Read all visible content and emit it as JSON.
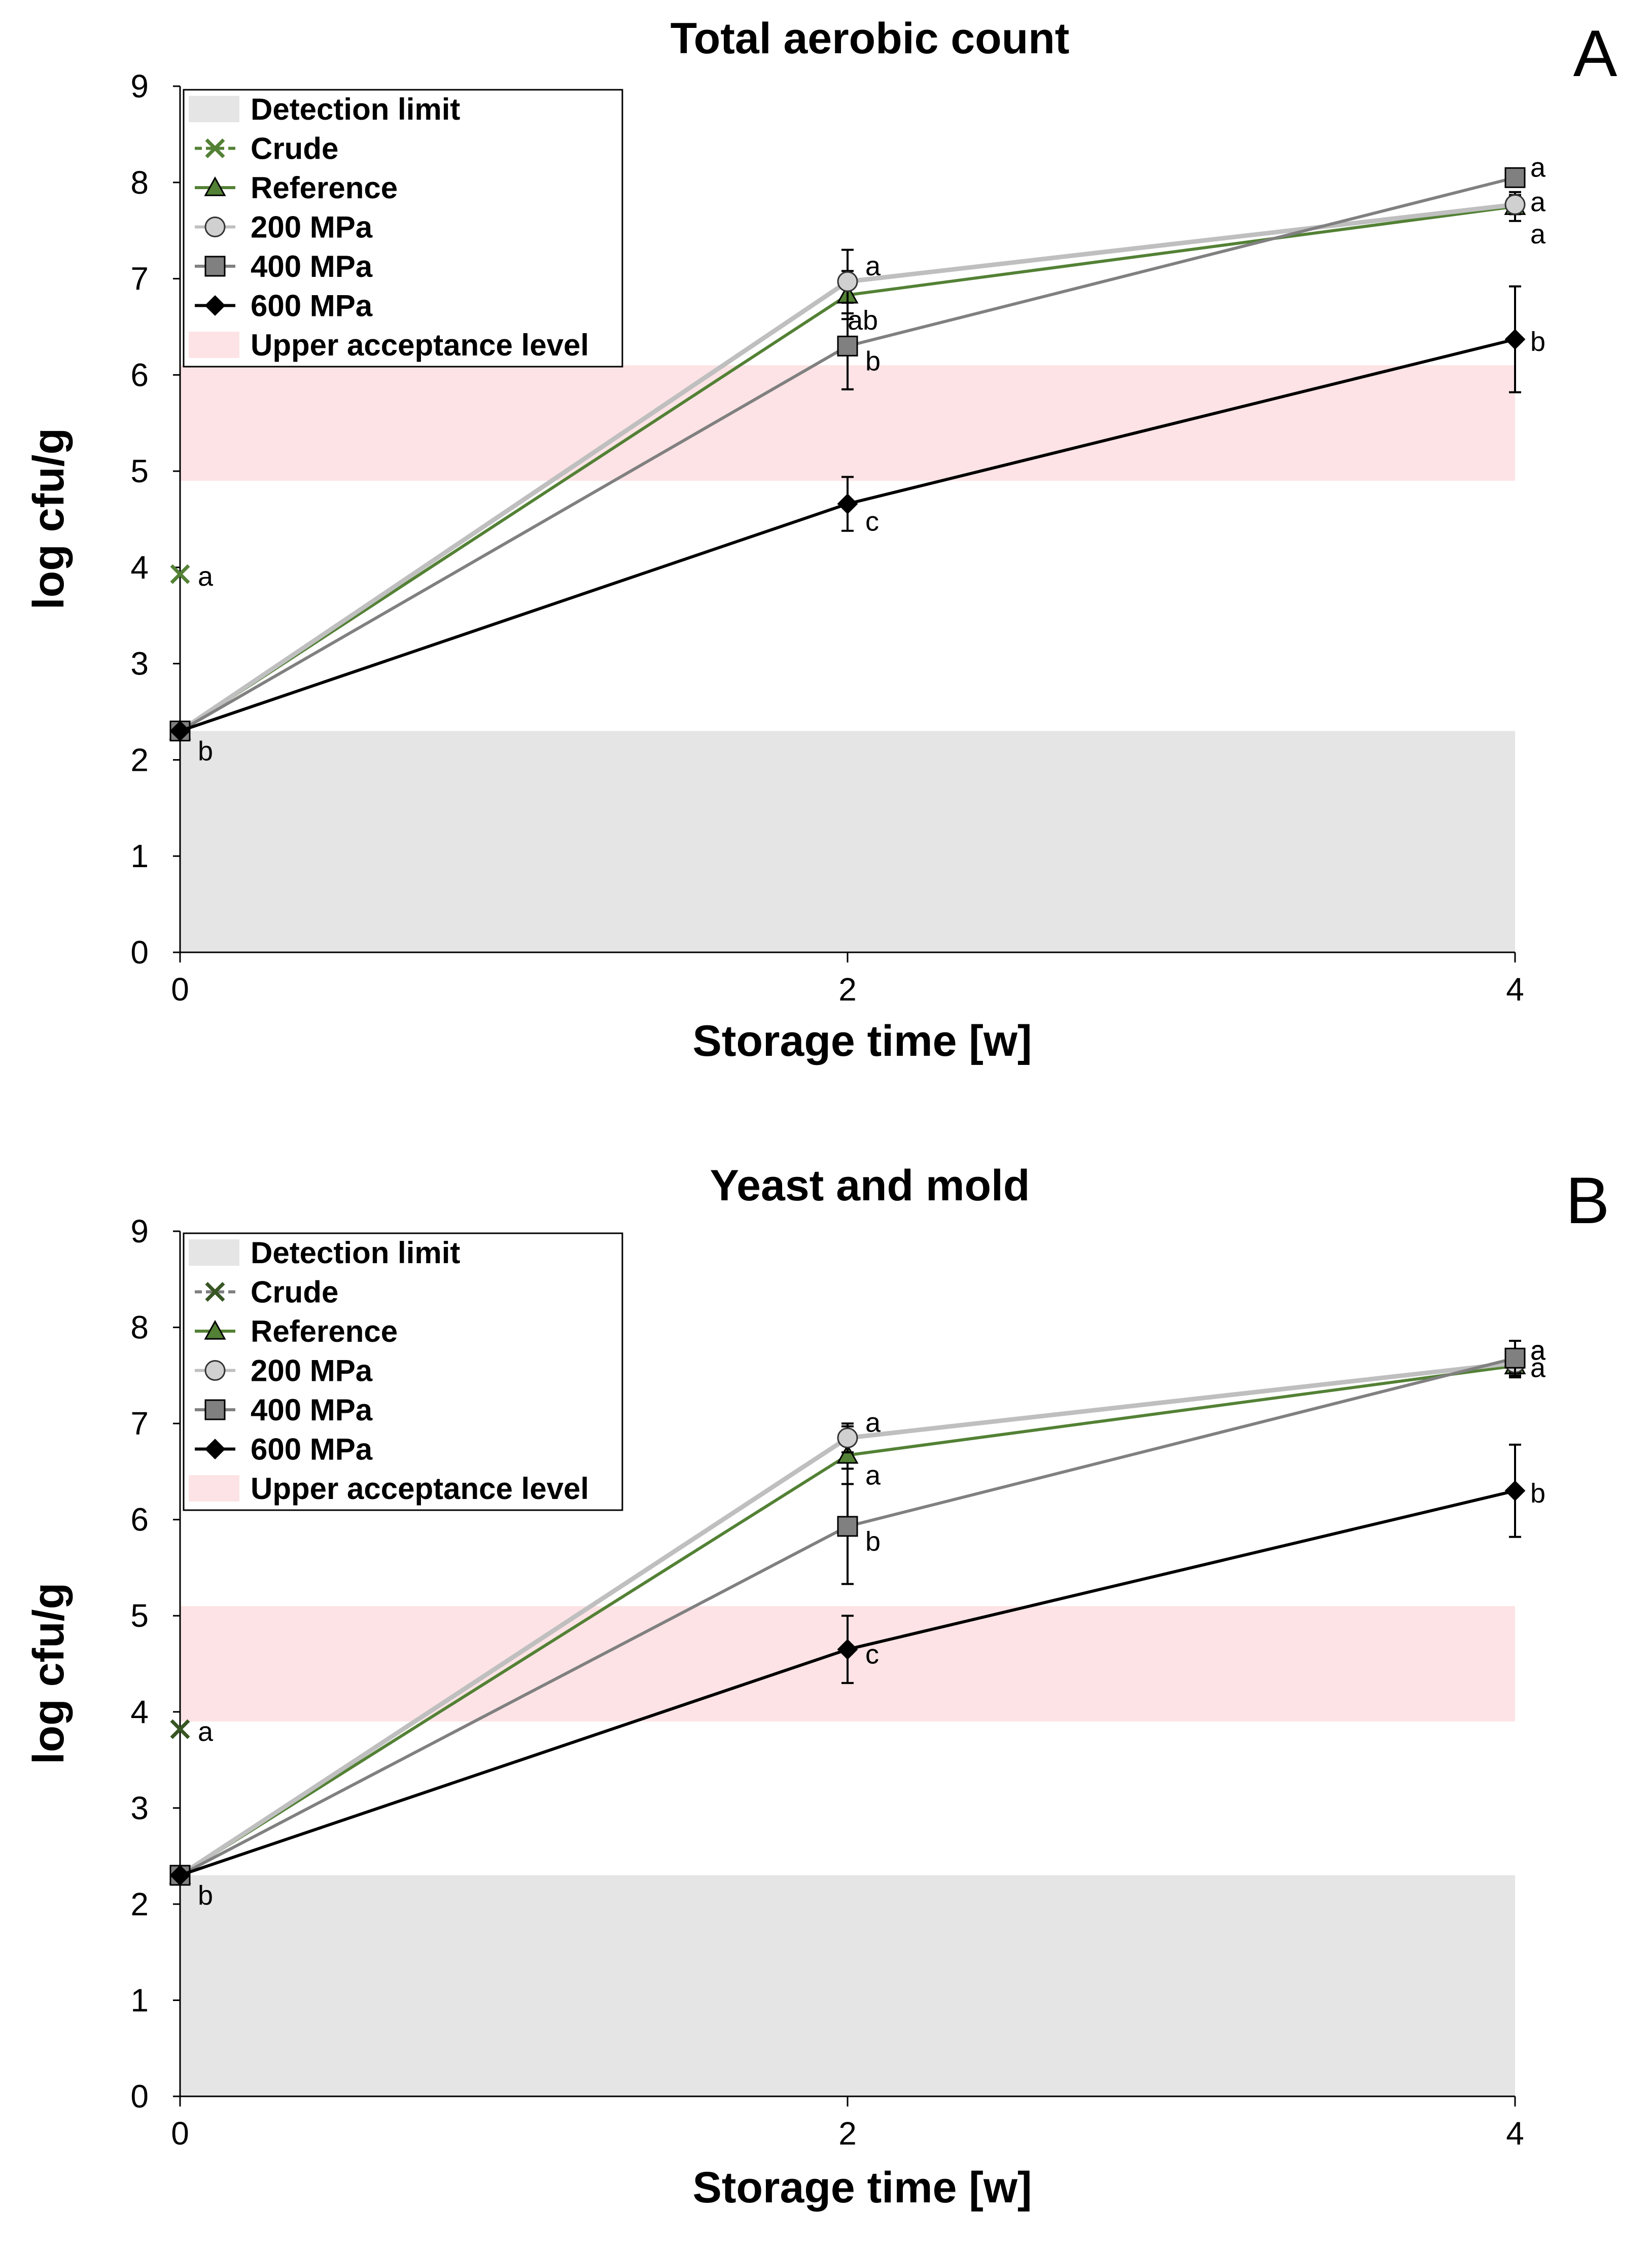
{
  "chart_data": [
    {
      "type": "line",
      "panel": "A",
      "title": "Total aerobic count",
      "xlabel": "Storage time [w]",
      "ylabel": "log cfu/g",
      "x_ticks": [
        0,
        2,
        4
      ],
      "y_ticks": [
        0,
        1,
        2,
        3,
        4,
        5,
        6,
        7,
        8,
        9
      ],
      "xlim": [
        0,
        4
      ],
      "ylim": [
        0,
        9
      ],
      "bands": [
        {
          "name": "Detection limit",
          "y0": 0,
          "y1": 2.3,
          "color": "#e5e5e5"
        },
        {
          "name": "Upper acceptance level",
          "y0": 4.9,
          "y1": 6.1,
          "color": "#fde3e5"
        }
      ],
      "series": [
        {
          "name": "Crude",
          "marker": "x",
          "color": "#538135",
          "points": [
            {
              "x": 0,
              "y": 3.93,
              "err": 0
            }
          ],
          "labels": [
            "a"
          ]
        },
        {
          "name": "Reference",
          "marker": "triangle",
          "color": "#538135",
          "points": [
            {
              "x": 0,
              "y": 2.3,
              "err": 0
            },
            {
              "x": 2,
              "y": 6.83,
              "err": 0.25
            },
            {
              "x": 4,
              "y": 7.75,
              "err": 0.15
            }
          ],
          "labels": [
            "",
            "ab",
            "a"
          ]
        },
        {
          "name": "200 MPa",
          "marker": "circle",
          "color": "#bfbfbf",
          "points": [
            {
              "x": 0,
              "y": 2.3,
              "err": 0
            },
            {
              "x": 2,
              "y": 6.97,
              "err": 0.33
            },
            {
              "x": 4,
              "y": 7.77,
              "err": 0.1
            }
          ],
          "labels": [
            "",
            "a",
            "a"
          ]
        },
        {
          "name": "400 MPa",
          "marker": "square",
          "color": "#808080",
          "points": [
            {
              "x": 0,
              "y": 2.3,
              "err": 0
            },
            {
              "x": 2,
              "y": 6.3,
              "err": 0.45
            },
            {
              "x": 4,
              "y": 8.05,
              "err": 0.08
            }
          ],
          "labels": [
            "",
            "b",
            "a"
          ]
        },
        {
          "name": "600 MPa",
          "marker": "diamond",
          "color": "#000000",
          "points": [
            {
              "x": 0,
              "y": 2.3,
              "err": 0
            },
            {
              "x": 2,
              "y": 4.66,
              "err": 0.28
            },
            {
              "x": 4,
              "y": 6.37,
              "err": 0.55
            }
          ],
          "labels": [
            "b",
            "c",
            "b"
          ]
        }
      ],
      "legend": [
        "Detection limit",
        "Crude",
        "Reference",
        "200 MPa",
        "400 MPa",
        "600 MPa",
        "Upper acceptance level"
      ]
    },
    {
      "type": "line",
      "panel": "B",
      "title": "Yeast and mold",
      "xlabel": "Storage time [w]",
      "ylabel": "log cfu/g",
      "x_ticks": [
        0,
        2,
        4
      ],
      "y_ticks": [
        0,
        1,
        2,
        3,
        4,
        5,
        6,
        7,
        8,
        9
      ],
      "xlim": [
        0,
        4
      ],
      "ylim": [
        0,
        9
      ],
      "bands": [
        {
          "name": "Detection limit",
          "y0": 0,
          "y1": 2.3,
          "color": "#e5e5e5"
        },
        {
          "name": "Upper acceptance level",
          "y0": 3.9,
          "y1": 5.1,
          "color": "#fde3e5"
        }
      ],
      "series": [
        {
          "name": "Crude",
          "marker": "x",
          "color": "#375623",
          "points": [
            {
              "x": 0,
              "y": 3.82,
              "err": 0
            }
          ],
          "labels": [
            "a"
          ]
        },
        {
          "name": "Reference",
          "marker": "triangle",
          "color": "#538135",
          "points": [
            {
              "x": 0,
              "y": 2.3,
              "err": 0
            },
            {
              "x": 2,
              "y": 6.67,
              "err": 0.3
            },
            {
              "x": 4,
              "y": 7.6,
              "err": 0.12
            }
          ],
          "labels": [
            "",
            "a",
            "a"
          ]
        },
        {
          "name": "200 MPa",
          "marker": "circle",
          "color": "#bfbfbf",
          "points": [
            {
              "x": 0,
              "y": 2.3,
              "err": 0
            },
            {
              "x": 2,
              "y": 6.85,
              "err": 0.15
            },
            {
              "x": 4,
              "y": 7.63,
              "err": 0.1
            }
          ],
          "labels": [
            "",
            "a",
            "a"
          ]
        },
        {
          "name": "400 MPa",
          "marker": "square",
          "color": "#808080",
          "points": [
            {
              "x": 0,
              "y": 2.3,
              "err": 0
            },
            {
              "x": 2,
              "y": 5.93,
              "err": 0.6
            },
            {
              "x": 4,
              "y": 7.68,
              "err": 0.18
            }
          ],
          "labels": [
            "",
            "b",
            "a"
          ]
        },
        {
          "name": "600 MPa",
          "marker": "diamond",
          "color": "#000000",
          "points": [
            {
              "x": 0,
              "y": 2.3,
              "err": 0
            },
            {
              "x": 2,
              "y": 4.65,
              "err": 0.35
            },
            {
              "x": 4,
              "y": 6.3,
              "err": 0.48
            }
          ],
          "labels": [
            "b",
            "c",
            "b"
          ]
        }
      ],
      "legend": [
        "Detection limit",
        "Crude",
        "Reference",
        "200 MPa",
        "400 MPa",
        "600 MPa",
        "Upper acceptance level"
      ]
    }
  ]
}
